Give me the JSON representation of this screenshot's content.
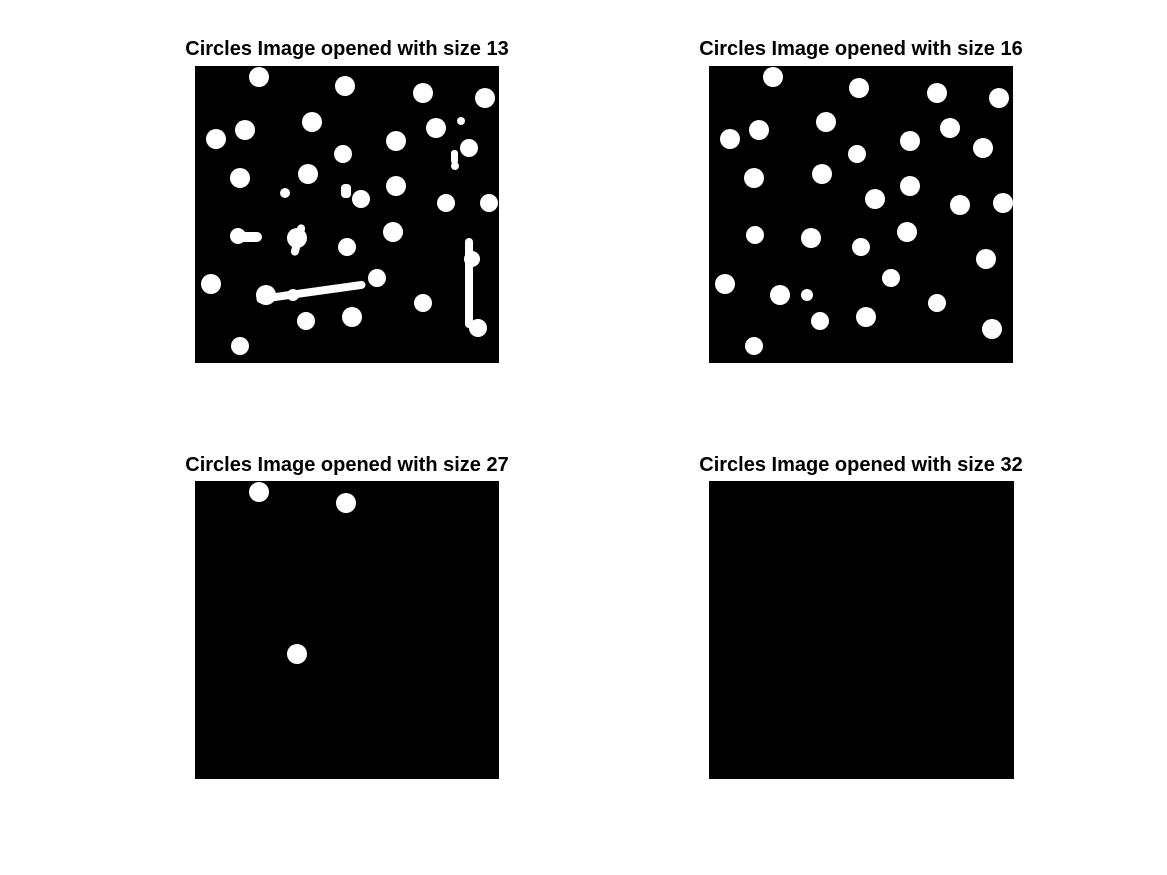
{
  "figure": {
    "panels": [
      {
        "title": "Circles Image opened with size 13",
        "background": "#000000",
        "foreground": "#ffffff"
      },
      {
        "title": "Circles Image opened with size 16",
        "background": "#000000",
        "foreground": "#ffffff"
      },
      {
        "title": "Circles Image opened with size 27",
        "background": "#000000",
        "foreground": "#ffffff"
      },
      {
        "title": "Circles Image opened with size 32",
        "background": "#000000",
        "foreground": "#ffffff"
      }
    ]
  }
}
